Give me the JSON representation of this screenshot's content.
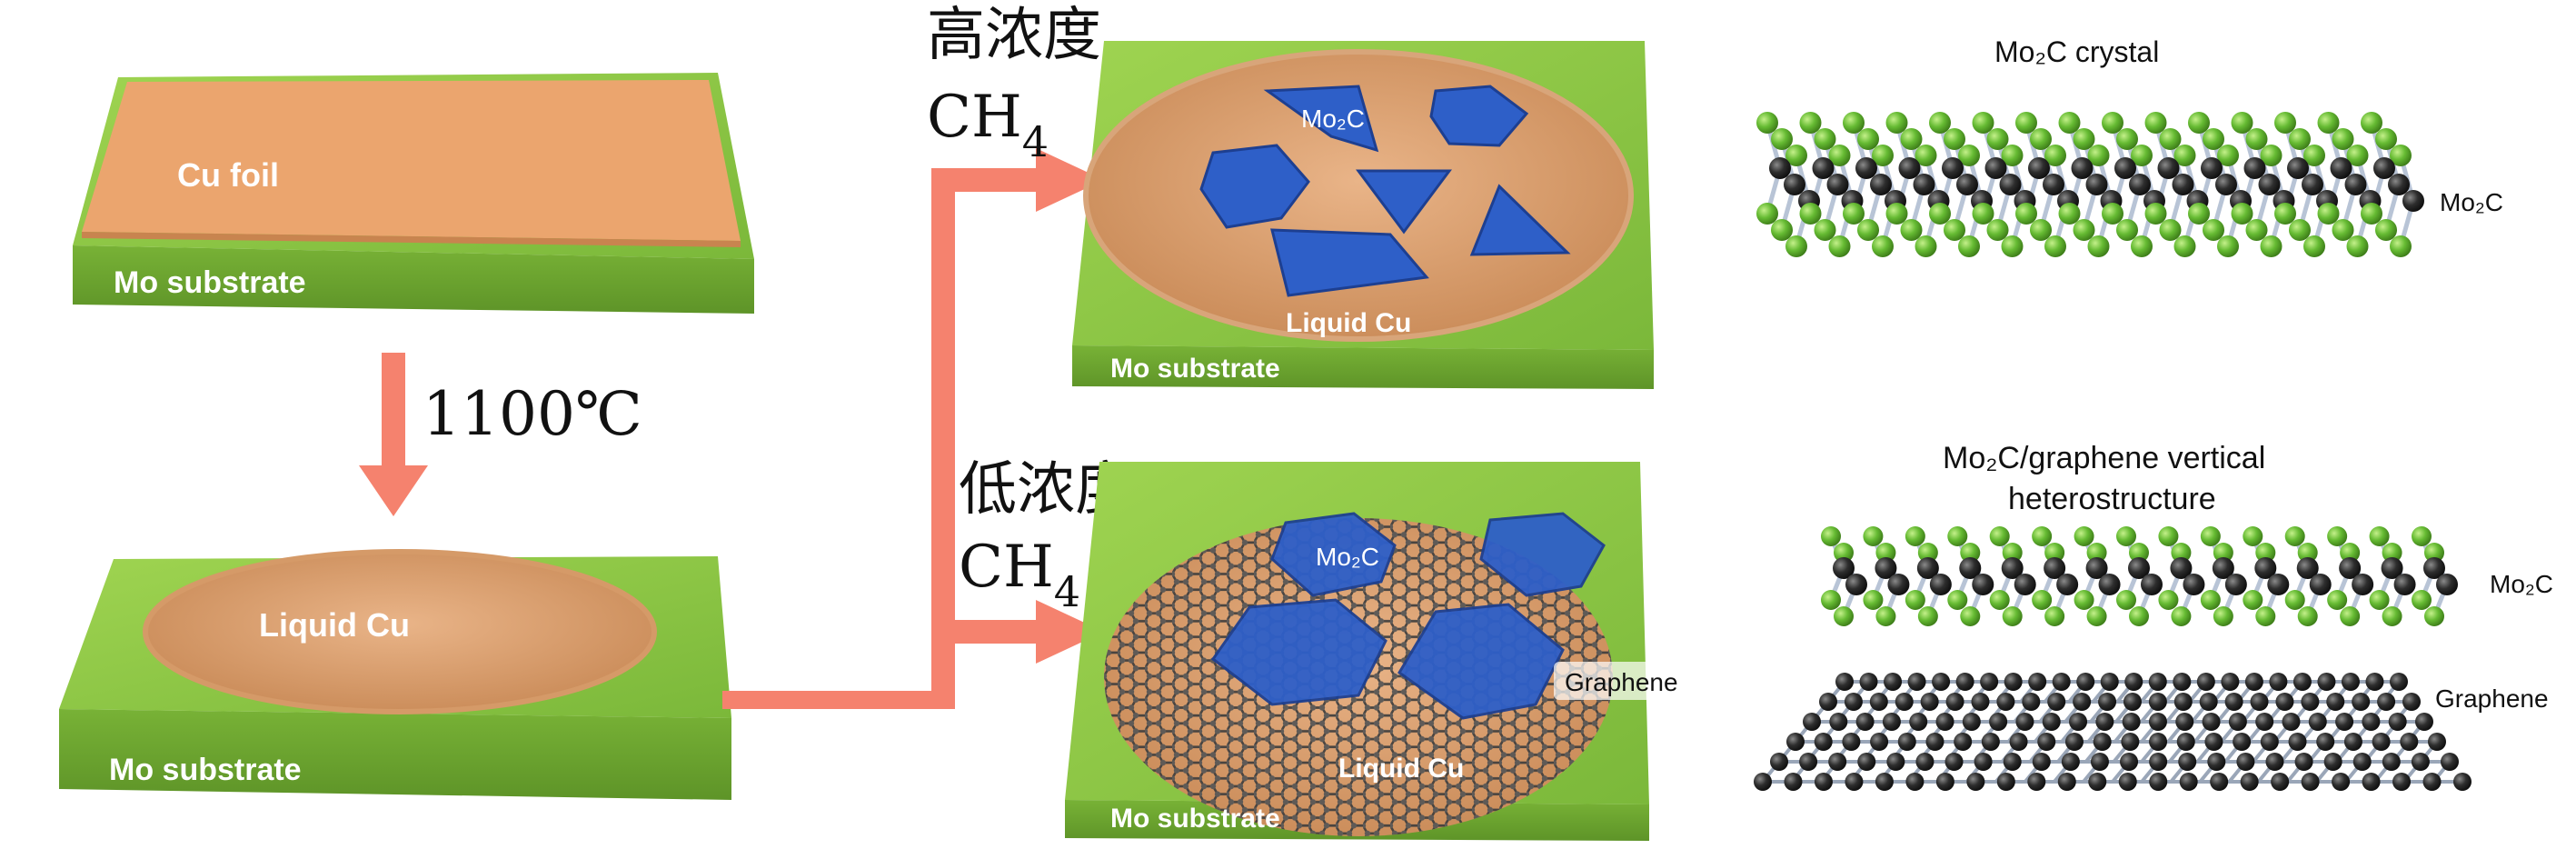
{
  "panels": {
    "start": {
      "foil": "Cu foil",
      "substrate": "Mo substrate"
    },
    "melted": {
      "liquid": "Liquid Cu",
      "substrate": "Mo substrate"
    },
    "high": {
      "crystal": "Mo₂C",
      "liquid": "Liquid Cu",
      "substrate": "Mo substrate"
    },
    "low": {
      "crystal": "Mo₂C",
      "graphene": "Graphene",
      "liquid": "Liquid Cu",
      "substrate": "Mo substrate"
    }
  },
  "arrows": {
    "temperature": "1100℃",
    "high_conc": "高浓度",
    "low_conc": "低浓度",
    "gas": "CH",
    "gas_sub": "4"
  },
  "structures": {
    "crystal_title": "Mo₂C crystal",
    "crystal_label": "Mo₂C",
    "hetero_title_1": "Mo₂C/graphene vertical",
    "hetero_title_2": "heterostructure",
    "hetero_mo2c_label": "Mo₂C",
    "hetero_graphene_label": "Graphene"
  },
  "colors": {
    "substrate": "#8cc63f",
    "copper": "#e8a470",
    "crystal": "#2e5fc8",
    "arrow": "#f5826e",
    "mo_atom": "#2a2a2a",
    "c_atom": "#6cc23a"
  }
}
